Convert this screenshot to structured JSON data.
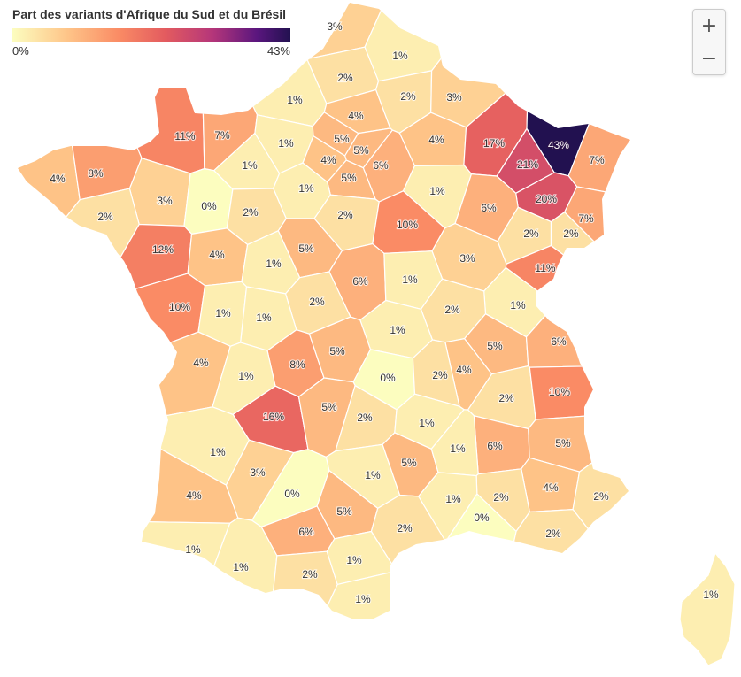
{
  "legend": {
    "title": "Part des variants d'Afrique du Sud et du Brésil",
    "min_label": "0%",
    "max_label": "43%",
    "min_value": 0,
    "max_value": 43
  },
  "zoom": {
    "in_label": "+",
    "out_label": "−"
  },
  "colors": {
    "scale": [
      "#fcfdbf",
      "#fec488",
      "#fa8c65",
      "#e35b5f",
      "#b5367a",
      "#5a167e",
      "#221150"
    ],
    "border": "#ffffff"
  },
  "departments": [
    {
      "value": 3,
      "label": "3%"
    },
    {
      "value": 1,
      "label": "1%"
    },
    {
      "value": 2,
      "label": "2%"
    },
    {
      "value": 2,
      "label": "2%"
    },
    {
      "value": 3,
      "label": "3%"
    },
    {
      "value": 1,
      "label": "1%"
    },
    {
      "value": 4,
      "label": "4%"
    },
    {
      "value": 4,
      "label": "4%"
    },
    {
      "value": 11,
      "label": "11%"
    },
    {
      "value": 7,
      "label": "7%"
    },
    {
      "value": 1,
      "label": "1%"
    },
    {
      "value": 5,
      "label": "5%"
    },
    {
      "value": 5,
      "label": "5%"
    },
    {
      "value": 4,
      "label": "4%"
    },
    {
      "value": 6,
      "label": "6%"
    },
    {
      "value": 17,
      "label": "17%"
    },
    {
      "value": 43,
      "label": "43%"
    },
    {
      "value": 21,
      "label": "21%"
    },
    {
      "value": 7,
      "label": "7%"
    },
    {
      "value": 4,
      "label": "4%"
    },
    {
      "value": 8,
      "label": "8%"
    },
    {
      "value": 1,
      "label": "1%"
    },
    {
      "value": 5,
      "label": "5%"
    },
    {
      "value": 1,
      "label": "1%"
    },
    {
      "value": 1,
      "label": "1%"
    },
    {
      "value": 20,
      "label": "20%"
    },
    {
      "value": 3,
      "label": "3%"
    },
    {
      "value": 0,
      "label": "0%"
    },
    {
      "value": 2,
      "label": "2%"
    },
    {
      "value": 2,
      "label": "2%"
    },
    {
      "value": 6,
      "label": "6%"
    },
    {
      "value": 7,
      "label": "7%"
    },
    {
      "value": 2,
      "label": "2%"
    },
    {
      "value": 10,
      "label": "10%"
    },
    {
      "value": 2,
      "label": "2%"
    },
    {
      "value": 2,
      "label": "2%"
    },
    {
      "value": 12,
      "label": "12%"
    },
    {
      "value": 4,
      "label": "4%"
    },
    {
      "value": 5,
      "label": "5%"
    },
    {
      "value": 1,
      "label": "1%"
    },
    {
      "value": 3,
      "label": "3%"
    },
    {
      "value": 11,
      "label": "11%"
    },
    {
      "value": 6,
      "label": "6%"
    },
    {
      "value": 1,
      "label": "1%"
    },
    {
      "value": 2,
      "label": "2%"
    },
    {
      "value": 1,
      "label": "1%"
    },
    {
      "value": 10,
      "label": "10%"
    },
    {
      "value": 1,
      "label": "1%"
    },
    {
      "value": 2,
      "label": "2%"
    },
    {
      "value": 1,
      "label": "1%"
    },
    {
      "value": 1,
      "label": "1%"
    },
    {
      "value": 5,
      "label": "5%"
    },
    {
      "value": 6,
      "label": "6%"
    },
    {
      "value": 8,
      "label": "8%"
    },
    {
      "value": 5,
      "label": "5%"
    },
    {
      "value": 4,
      "label": "4%"
    },
    {
      "value": 4,
      "label": "4%"
    },
    {
      "value": 1,
      "label": "1%"
    },
    {
      "value": 0,
      "label": "0%"
    },
    {
      "value": 2,
      "label": "2%"
    },
    {
      "value": 2,
      "label": "2%"
    },
    {
      "value": 10,
      "label": "10%"
    },
    {
      "value": 16,
      "label": "16%"
    },
    {
      "value": 5,
      "label": "5%"
    },
    {
      "value": 2,
      "label": "2%"
    },
    {
      "value": 1,
      "label": "1%"
    },
    {
      "value": 1,
      "label": "1%"
    },
    {
      "value": 4,
      "label": "4%"
    },
    {
      "value": 6,
      "label": "6%"
    },
    {
      "value": 5,
      "label": "5%"
    },
    {
      "value": 3,
      "label": "3%"
    },
    {
      "value": 1,
      "label": "1%"
    },
    {
      "value": 5,
      "label": "5%"
    },
    {
      "value": 4,
      "label": "4%"
    },
    {
      "value": 0,
      "label": "0%"
    },
    {
      "value": 1,
      "label": "1%"
    },
    {
      "value": 2,
      "label": "2%"
    },
    {
      "value": 5,
      "label": "5%"
    },
    {
      "value": 2,
      "label": "2%"
    },
    {
      "value": 0,
      "label": "0%"
    },
    {
      "value": 6,
      "label": "6%"
    },
    {
      "value": 1,
      "label": "1%"
    },
    {
      "value": 2,
      "label": "2%"
    },
    {
      "value": 1,
      "label": "1%"
    },
    {
      "value": 2,
      "label": "2%"
    },
    {
      "value": 1,
      "label": "1%"
    },
    {
      "value": 2,
      "label": "2%"
    },
    {
      "value": 1,
      "label": "1%"
    },
    {
      "value": 1,
      "label": "1%"
    },
    {
      "value": 1,
      "label": "1%"
    }
  ]
}
